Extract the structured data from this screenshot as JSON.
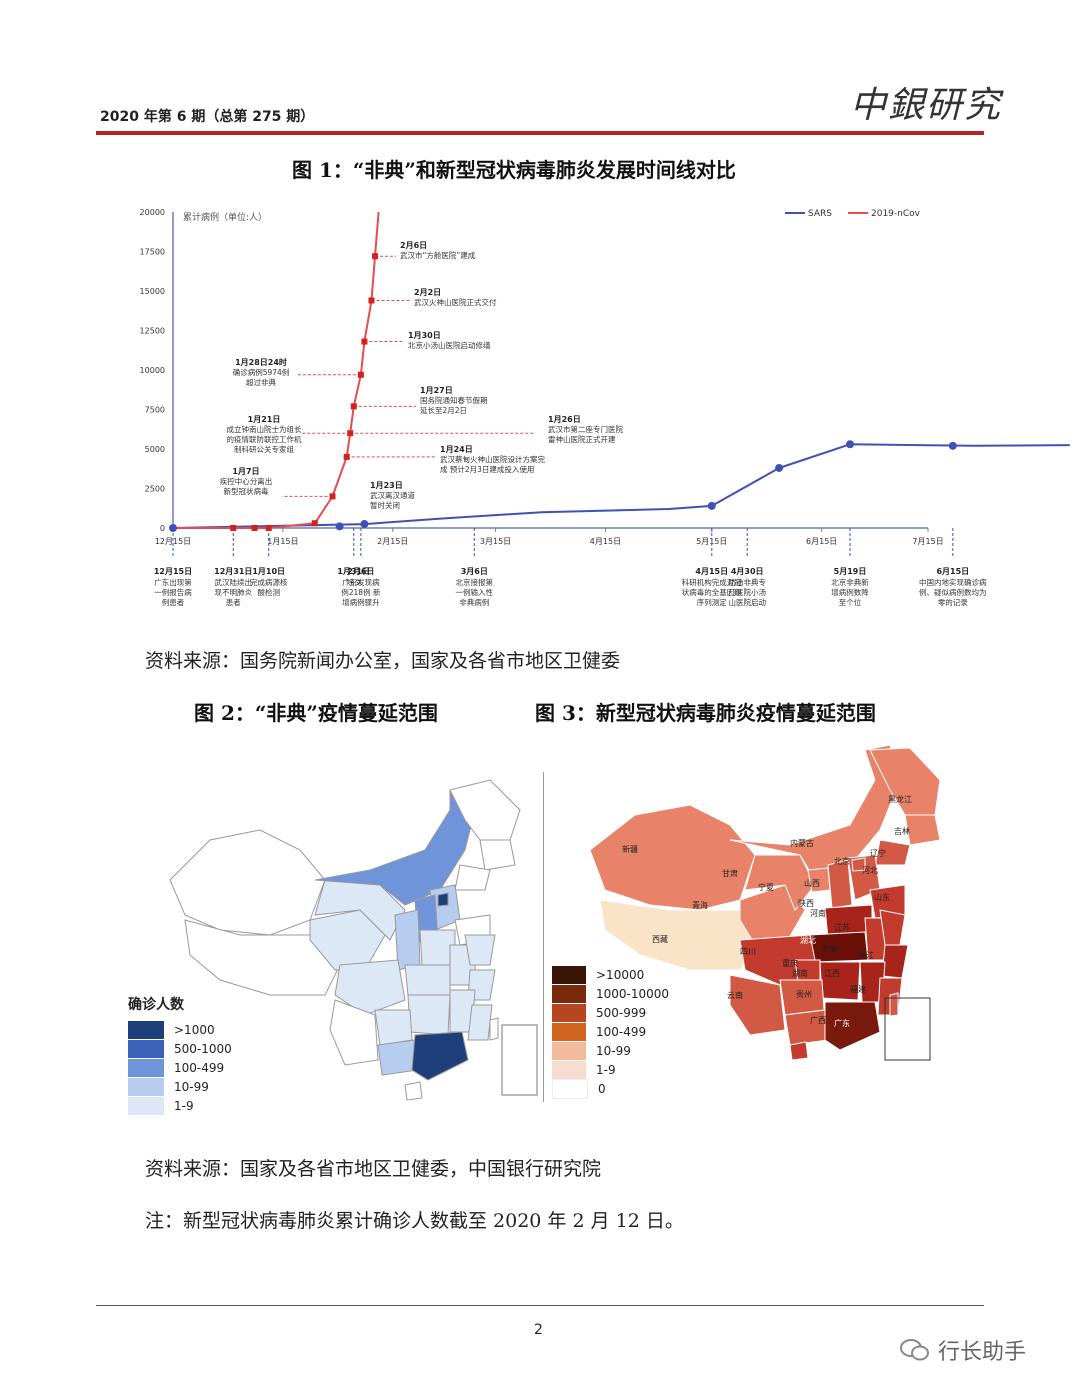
{
  "header": {
    "issue": "2020 年第 6 期（总第 275 期）",
    "logo": "中銀研究"
  },
  "figure1": {
    "title": "图 1：“非典”和新型冠状病毒肺炎发展时间线对比",
    "source": "资料来源：国务院新闻办公室，国家及各省市地区卫健委"
  },
  "chart_data": {
    "type": "line",
    "ylabel": "累计病例（单位:人）",
    "ylim": [
      0,
      20000
    ],
    "yticks": [
      "0",
      "2500",
      "5000",
      "7500",
      "10000",
      "12500",
      "15000",
      "17500",
      "20000"
    ],
    "xticks": [
      "12月15日",
      "1月15日",
      "2月15日",
      "3月15日",
      "4月15日",
      "5月15日",
      "6月15日",
      "7月15日"
    ],
    "legend_position": "top-right",
    "series": [
      {
        "name": "SARS",
        "color": "#3f51b5",
        "points": [
          [
            0,
            0
          ],
          [
            54,
            250
          ],
          [
            76,
            600
          ],
          [
            104,
            1000
          ],
          [
            140,
            1200
          ],
          [
            152,
            1400
          ],
          [
            171,
            3800
          ],
          [
            191,
            5300
          ],
          [
            210,
            5250
          ],
          [
            226,
            5200
          ],
          [
            253,
            5250
          ]
        ]
      },
      {
        "name": "2019-nCov",
        "color": "#e74c4c",
        "points": [
          [
            0,
            0
          ],
          [
            17,
            0
          ],
          [
            23,
            0
          ],
          [
            27,
            0
          ],
          [
            40,
            300
          ],
          [
            45,
            2000
          ],
          [
            49,
            4500
          ],
          [
            50,
            6000
          ],
          [
            51,
            7700
          ],
          [
            53,
            9700
          ],
          [
            54,
            11800
          ],
          [
            56,
            14400
          ],
          [
            57,
            17200
          ],
          [
            58,
            20000
          ]
        ]
      }
    ],
    "markers_ncov": [
      [
        0,
        0
      ],
      [
        17,
        0
      ],
      [
        23,
        0
      ],
      [
        27,
        0
      ],
      [
        40,
        300
      ],
      [
        45,
        2000
      ],
      [
        49,
        4500
      ],
      [
        50,
        6000
      ],
      [
        51,
        7700
      ],
      [
        53,
        9700
      ],
      [
        54,
        11800
      ],
      [
        56,
        14400
      ],
      [
        57,
        17200
      ]
    ],
    "markers_sars": [
      [
        0,
        0
      ],
      [
        47,
        100
      ],
      [
        54,
        250
      ],
      [
        152,
        1400
      ],
      [
        171,
        3800
      ],
      [
        191,
        5300
      ],
      [
        220,
        5200
      ]
    ],
    "annotations_top": [
      {
        "date": "2月6日",
        "text": "武汉市“方舱医院”建成"
      },
      {
        "date": "2月2日",
        "text": "武汉火神山医院正式交付"
      },
      {
        "date": "1月30日",
        "text": "北京小汤山医院启动修缮"
      },
      {
        "date": "1月28日24时",
        "text": "确诊病例5974例",
        "text2": "超过非典"
      },
      {
        "date": "1月27日",
        "text": "国务院通知春节假期",
        "text2": "延长至2月2日"
      },
      {
        "date": "1月21日",
        "text": "成立钟南山院士为组长",
        "text2": "的疫情联防联控工作机",
        "text3": "制科研公关专家组"
      },
      {
        "date": "1月26日",
        "text": "武汉市第二座专门医院",
        "text2": "雷神山医院正式开建"
      },
      {
        "date": "1月24日",
        "text": "武汉蔡甸火神山医院设计方案完",
        "text2": "成 预计2月3日建成投入使用"
      },
      {
        "date": "1月7日",
        "text": "疾控中心分离出",
        "text2": "新型冠状病毒"
      },
      {
        "date": "1月23日",
        "text": "武汉离汉通道",
        "text2": "暂时关闭"
      }
    ],
    "annotations_bottom": [
      {
        "date": "12月15日",
        "l1": "广东出现第",
        "l2": "一例报告病",
        "l3": "例患者"
      },
      {
        "date": "12月31日",
        "l1": "武汉陆续出",
        "l2": "现不明肺炎",
        "l3": "患者"
      },
      {
        "date": "1月10日",
        "l1": "完成病源核",
        "l2": "酸检测",
        "l3": ""
      },
      {
        "date": "1月31日",
        "l1": "除夕",
        "l2": "",
        "l3": ""
      },
      {
        "date": "2月6日",
        "l1": "广东发现病",
        "l2": "例218例 新",
        "l3": "增病例骤升"
      },
      {
        "date": "3月6日",
        "l1": "北京接报第",
        "l2": "一例输入性",
        "l3": "非典病例"
      },
      {
        "date": "4月15日",
        "l1": "科研机构完成对冠",
        "l2": "状病毒的全基因组",
        "l3": "序列测定"
      },
      {
        "date": "4月30日",
        "l1": "防治非典专",
        "l2": "门医院小汤",
        "l3": "山医院启动"
      },
      {
        "date": "5月19日",
        "l1": "北京非典新",
        "l2": "增病例数降",
        "l3": "至个位"
      },
      {
        "date": "6月15日",
        "l1": "中国内地实现确诊病",
        "l2": "例、疑似病例数均为",
        "l3": "零的记录"
      }
    ]
  },
  "figure2": {
    "title": "图 2：“非典”疫情蔓延范围",
    "legend_title": "确诊人数",
    "legend": [
      {
        "label": ">1000",
        "color": "#1f3f7a"
      },
      {
        "label": "500-1000",
        "color": "#3a63b8"
      },
      {
        "label": "100-499",
        "color": "#6f94d9"
      },
      {
        "label": "10-99",
        "color": "#b7cdef"
      },
      {
        "label": "1-9",
        "color": "#dde8f7"
      }
    ]
  },
  "figure3": {
    "title": "图 3：新型冠状病毒肺炎疫情蔓延范围",
    "legend": [
      {
        "label": ">10000",
        "color": "#3b1408"
      },
      {
        "label": "1000-10000",
        "color": "#7a2a0c"
      },
      {
        "label": "500-999",
        "color": "#b64622"
      },
      {
        "label": "100-499",
        "color": "#d2651e"
      },
      {
        "label": "10-99",
        "color": "#f2b99a"
      },
      {
        "label": "1-9",
        "color": "#f7dccf"
      },
      {
        "label": "0",
        "color": "#ffffff"
      }
    ],
    "provinces": [
      "黑龙江",
      "吉林",
      "辽宁",
      "内蒙古",
      "北京",
      "河北",
      "新疆",
      "甘肃",
      "宁夏",
      "山西",
      "山东",
      "青海",
      "陕西",
      "河南",
      "江苏",
      "西藏",
      "湖北",
      "安徽",
      "四川",
      "重庆",
      "浙江",
      "湖南",
      "江西",
      "云南",
      "贵州",
      "福建",
      "广西",
      "广东"
    ]
  },
  "figures_source": "资料来源：国家及各省市地区卫健委，中国银行研究院",
  "note": "注：新型冠状病毒肺炎累计确诊人数截至 2020 年 2 月 12 日。",
  "footer": {
    "page": "2",
    "watermark": "行长助手"
  }
}
